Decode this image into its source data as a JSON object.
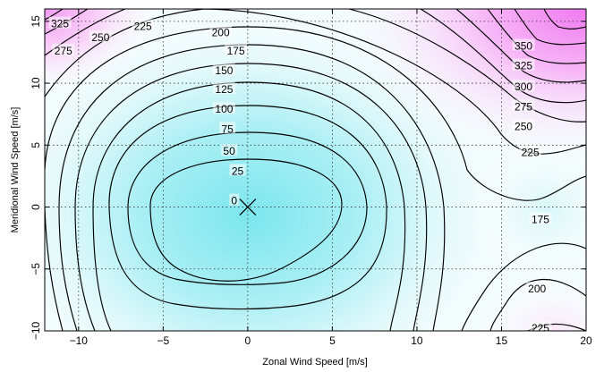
{
  "chart_data": {
    "type": "contour",
    "title": "",
    "xlabel": "Zonal Wind Speed [m/s]",
    "ylabel": "Meridional Wind Speed [m/s]",
    "xlim": [
      -12,
      20
    ],
    "ylim": [
      -10,
      16
    ],
    "x_ticks": [
      -10,
      -5,
      0,
      5,
      10,
      15,
      20
    ],
    "y_ticks": [
      -10,
      -5,
      0,
      5,
      10,
      15
    ],
    "x_tick_labels": [
      "−10",
      "−5",
      "0",
      "5",
      "10",
      "15",
      "20"
    ],
    "y_tick_labels": [
      "−10",
      "−5",
      "0",
      "5",
      "10",
      "15"
    ],
    "grid": true,
    "colormap": {
      "low": "#7fe8f0",
      "mid": "#ffffff",
      "high": "#f07af0"
    },
    "minimum_marker": {
      "x": 0,
      "y": 0,
      "symbol": "x"
    },
    "contour_levels": [
      0,
      25,
      50,
      75,
      100,
      125,
      150,
      175,
      200,
      225,
      250,
      275,
      300,
      325,
      350
    ],
    "contour_labels": [
      {
        "text": "0",
        "x": -0.8,
        "y": 0.5
      },
      {
        "text": "25",
        "x": -0.6,
        "y": 2.9
      },
      {
        "text": "50",
        "x": -1.1,
        "y": 4.5
      },
      {
        "text": "75",
        "x": -1.2,
        "y": 6.3
      },
      {
        "text": "100",
        "x": -1.4,
        "y": 7.9
      },
      {
        "text": "125",
        "x": -1.4,
        "y": 9.5
      },
      {
        "text": "150",
        "x": -1.4,
        "y": 11.0
      },
      {
        "text": "175",
        "x": -0.7,
        "y": 12.6
      },
      {
        "text": "200",
        "x": -1.6,
        "y": 14.1
      },
      {
        "text": "225",
        "x": -6.2,
        "y": 14.6
      },
      {
        "text": "250",
        "x": -8.7,
        "y": 13.7
      },
      {
        "text": "275",
        "x": -10.9,
        "y": 12.6
      },
      {
        "text": "325",
        "x": -11.1,
        "y": 14.8
      },
      {
        "text": "350",
        "x": 16.3,
        "y": 13.0
      },
      {
        "text": "325",
        "x": 16.3,
        "y": 11.4
      },
      {
        "text": "300",
        "x": 16.3,
        "y": 9.7
      },
      {
        "text": "275",
        "x": 16.3,
        "y": 8.1
      },
      {
        "text": "250",
        "x": 16.3,
        "y": 6.5
      },
      {
        "text": "225",
        "x": 16.7,
        "y": 4.4
      },
      {
        "text": "175",
        "x": 17.3,
        "y": -1.0
      },
      {
        "text": "200",
        "x": 17.1,
        "y": -6.6
      },
      {
        "text": "225",
        "x": 17.3,
        "y": -9.8
      }
    ]
  }
}
